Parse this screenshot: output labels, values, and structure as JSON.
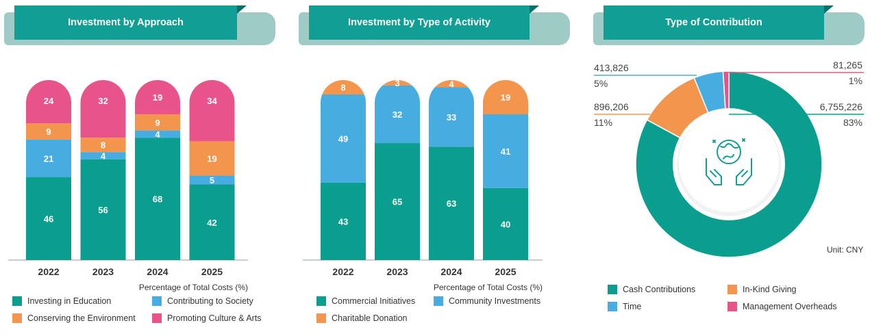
{
  "colors": {
    "teal": "#0a9e8f",
    "blue": "#47ace0",
    "orange": "#f3954d",
    "pink": "#e8548a",
    "header": "#119e95",
    "header_shadow": "#9fcbc6"
  },
  "panel1": {
    "title": "Investment by Approach",
    "axis_note": "Percentage of Total Costs (%)",
    "legend": [
      "Investing in Education",
      "Contributing to Society",
      "Conserving the Environment",
      "Promoting Culture & Arts"
    ]
  },
  "panel2": {
    "title": "Investment by Type of Activity",
    "axis_note": "Percentage of Total Costs (%)",
    "legend": [
      "Commercial Initiatives",
      "Community Investments",
      "Charitable Donation"
    ]
  },
  "panel3": {
    "title": "Type of Contribution",
    "unit": "Unit: CNY",
    "legend": [
      "Cash Contributions",
      "In-Kind Giving",
      "Time",
      "Management Overheads"
    ],
    "center_icon": "globe-in-hands-icon"
  },
  "chart_data": [
    {
      "type": "bar",
      "stacked": true,
      "title": "Investment by Approach",
      "xlabel": "",
      "ylabel": "Percentage of Total Costs (%)",
      "categories": [
        "2022",
        "2023",
        "2024",
        "2025"
      ],
      "ylim": [
        0,
        100
      ],
      "series": [
        {
          "name": "Investing in Education",
          "color": "#0a9e8f",
          "values": [
            46,
            56,
            68,
            42
          ]
        },
        {
          "name": "Contributing to Society",
          "color": "#47ace0",
          "values": [
            21,
            4,
            4,
            5
          ]
        },
        {
          "name": "Conserving the Environment",
          "color": "#f3954d",
          "values": [
            9,
            8,
            9,
            19
          ]
        },
        {
          "name": "Promoting Culture & Arts",
          "color": "#e8548a",
          "values": [
            24,
            32,
            19,
            34
          ]
        }
      ]
    },
    {
      "type": "bar",
      "stacked": true,
      "title": "Investment by Type of Activity",
      "xlabel": "",
      "ylabel": "Percentage of Total Costs (%)",
      "categories": [
        "2022",
        "2023",
        "2024",
        "2025"
      ],
      "ylim": [
        0,
        100
      ],
      "series": [
        {
          "name": "Commercial Initiatives",
          "color": "#0a9e8f",
          "values": [
            43,
            65,
            63,
            40
          ]
        },
        {
          "name": "Community Investments",
          "color": "#47ace0",
          "values": [
            49,
            32,
            33,
            41
          ]
        },
        {
          "name": "Charitable Donation",
          "color": "#f3954d",
          "values": [
            8,
            3,
            4,
            19
          ]
        }
      ]
    },
    {
      "type": "pie",
      "donut": true,
      "title": "Type of Contribution",
      "unit": "CNY",
      "slices": [
        {
          "name": "Cash Contributions",
          "color": "#0a9e8f",
          "value": 6755226,
          "label": "6,755,226",
          "percent": "83%"
        },
        {
          "name": "In-Kind Giving",
          "color": "#f3954d",
          "value": 896206,
          "label": "896,206",
          "percent": "11%"
        },
        {
          "name": "Time",
          "color": "#47ace0",
          "value": 413826,
          "label": "413,826",
          "percent": "5%"
        },
        {
          "name": "Management Overheads",
          "color": "#e8548a",
          "value": 81265,
          "label": "81,265",
          "percent": "1%"
        }
      ]
    }
  ]
}
